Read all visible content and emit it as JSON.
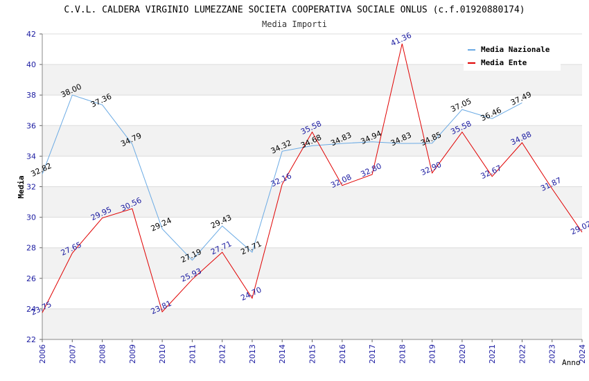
{
  "chart_data": {
    "type": "line",
    "title": "C.V.L. CALDERA VIRGINIO LUMEZZANE SOCIETA COOPERATIVA SOCIALE ONLUS (c.f.01920880174)",
    "subtitle": "Media Importi",
    "xlabel": "Anno",
    "ylabel": "Media",
    "ylim": [
      22,
      42
    ],
    "yticks": [
      "22",
      "24",
      "26",
      "28",
      "30",
      "32",
      "34",
      "36",
      "38",
      "40",
      "42"
    ],
    "categories": [
      "2006",
      "2007",
      "2008",
      "2009",
      "2010",
      "2011",
      "2012",
      "2013",
      "2014",
      "2015",
      "2016",
      "2017",
      "2018",
      "2019",
      "2020",
      "2021",
      "2022",
      "2023",
      "2024"
    ],
    "legend_position": "top-right",
    "series": [
      {
        "name": "Media Nazionale",
        "color": "#6aaae4",
        "label_color": "#000000",
        "values": [
          32.82,
          38.0,
          37.36,
          34.79,
          29.24,
          27.19,
          29.43,
          27.71,
          34.32,
          34.68,
          34.83,
          34.94,
          34.83,
          34.85,
          37.05,
          36.46,
          37.49,
          null,
          null
        ],
        "labels": [
          "32.82",
          "38.00",
          "37.36",
          "34.79",
          "29.24",
          "27.19",
          "29.43",
          "27.71",
          "34.32",
          "34.68",
          "34.83",
          "34.94",
          "34.83",
          "34.85",
          "37.05",
          "36.46",
          "37.49",
          null,
          null
        ]
      },
      {
        "name": "Media Ente",
        "color": "#e00000",
        "label_color": "#1a1aa0",
        "values": [
          23.75,
          27.65,
          29.95,
          30.56,
          23.81,
          25.93,
          27.71,
          24.7,
          32.16,
          35.58,
          32.08,
          32.8,
          41.36,
          32.9,
          35.58,
          32.67,
          34.88,
          31.87,
          29.02
        ],
        "labels": [
          "23.75",
          "27.65",
          "29.95",
          "30.56",
          "23.81",
          "25.93",
          "27.71",
          "24.70",
          "32.16",
          "35.58",
          "32.08",
          "32.80",
          "41.36",
          "32.90",
          "35.58",
          "32.67",
          "34.88",
          "31.87",
          "29.02"
        ]
      }
    ]
  }
}
